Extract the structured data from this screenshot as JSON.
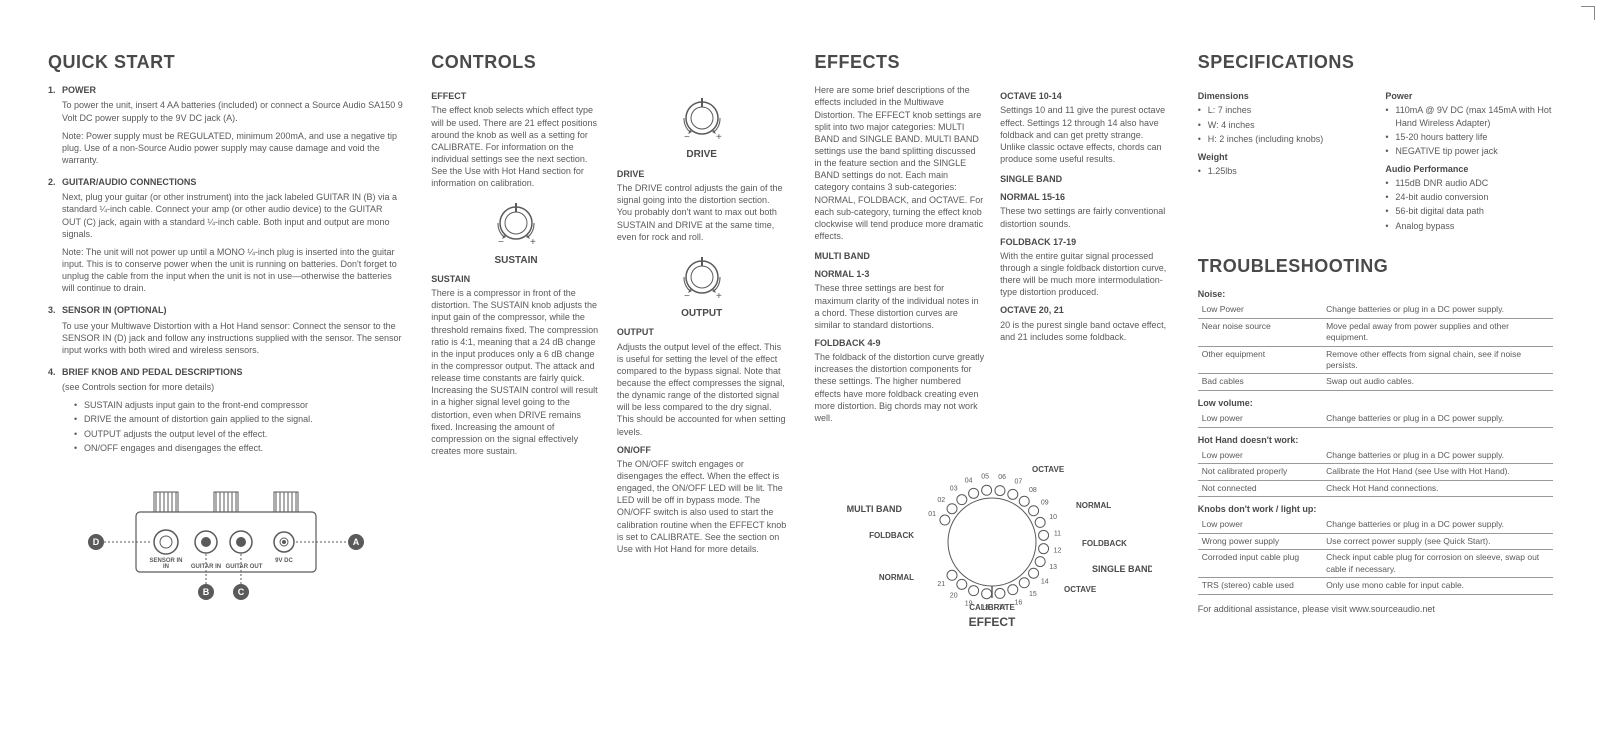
{
  "quickstart": {
    "title": "QUICK START",
    "items": [
      {
        "heading": "POWER",
        "body": "To power the unit, insert 4 AA batteries (included) or connect a Source Audio SA150 9 Volt DC power supply to the 9V DC jack (A).",
        "note": "Note: Power supply must be REGULATED, minimum 200mA, and use a negative tip plug. Use of a non-Source Audio power supply may cause damage and void the warranty."
      },
      {
        "heading": "GUITAR/AUDIO CONNECTIONS",
        "body": "Next, plug your guitar (or other instrument) into the jack labeled GUITAR IN (B) via a standard ¼-inch cable. Connect your amp (or other audio device) to the GUITAR OUT (C) jack, again with a standard ¼-inch cable. Both input and output are mono signals.",
        "note": "Note: The unit will not power up until a MONO ¼-inch plug is inserted into the guitar input. This is to conserve power when the unit is running on batteries. Don't forget to unplug the cable from the input when the unit is not in use—otherwise the batteries will continue to drain."
      },
      {
        "heading": "SENSOR IN (optional)",
        "body": "To use your Multiwave Distortion with a Hot Hand sensor: Connect the sensor to the SENSOR IN (D) jack and follow any instructions supplied with the sensor. The sensor input works with both wired and wireless sensors."
      },
      {
        "heading": "BRIEF KNOB AND PEDAL DESCRIPTIONS",
        "body": "(see Controls section for more details)",
        "bullets": [
          "SUSTAIN adjusts input gain to the front-end compressor",
          "DRIVE the amount of distortion gain applied to the signal.",
          "OUTPUT adjusts the output level of the effect.",
          "ON/OFF engages and disengages the effect."
        ]
      }
    ],
    "diagram_labels": {
      "sensor": "SENSOR IN",
      "gin": "GUITAR IN",
      "gout": "GUITAR OUT",
      "dc": "9V DC",
      "a": "A",
      "b": "B",
      "c": "C",
      "d": "D"
    }
  },
  "controls": {
    "title": "CONTROLS",
    "effect": {
      "h": "EFFECT",
      "body": "The effect knob selects which effect type will be used. There are 21 effect positions around the knob as well as a setting for CALIBRATE. For information on the individual settings see the next section. See the Use with Hot Hand section for information on calibration."
    },
    "sustain": {
      "h": "SUSTAIN",
      "body": "There is a compressor in front of the distortion. The SUSTAIN knob adjusts the input gain of the compressor, while the threshold remains fixed. The compression ratio is 4:1, meaning that a 24 dB change in the input produces only a 6 dB change in the compressor output. The attack and release time constants are fairly quick. Increasing the SUSTAIN control will result in a higher signal level going to the distortion, even when DRIVE remains fixed. Increasing the amount of compression on the signal effectively creates more sustain."
    },
    "drive": {
      "h": "DRIVE",
      "body": "The DRIVE control adjusts the gain of the signal going into the distortion section. You probably don't want to max out both SUSTAIN and DRIVE at the same time, even for rock and roll."
    },
    "output": {
      "h": "OUTPUT",
      "body": "Adjusts the output level of the effect. This is useful for setting the level of the effect compared to the bypass signal. Note that because the effect compresses the signal, the dynamic range of the distorted signal will be less compared to the dry signal. This should be accounted for when setting levels."
    },
    "onoff": {
      "h": "ON/OFF",
      "body": "The ON/OFF switch engages or disengages the effect. When the effect is engaged, the ON/OFF LED will be lit. The LED will be off in bypass mode. The ON/OFF switch is also used to start the calibration routine when the EFFECT knob is set to CALIBRATE. See the section on Use with Hot Hand for more details."
    },
    "knob_labels": {
      "sustain": "SUSTAIN",
      "drive": "DRIVE",
      "output": "OUTPUT"
    }
  },
  "effects": {
    "title": "EFFECTS",
    "intro": "Here are some brief descriptions of the effects included in the Multiwave Distortion. The EFFECT knob settings are split into two major categories: MULTI BAND and SINGLE BAND. MULTI BAND settings use the band splitting discussed in the feature section and the SINGLE BAND settings do not. Each main category contains 3 sub-categories: NORMAL, FOLDBACK, and OCTAVE. For each sub-category, turning the effect knob clockwise will tend produce more dramatic effects.",
    "multiband": {
      "h": "MULTI BAND",
      "sections": [
        {
          "h": "NORMAL 1-3",
          "body": "These three settings are best for maximum clarity of the individual notes in a chord. These distortion curves are similar to standard distortions."
        },
        {
          "h": "FOLDBACK 4-9",
          "body": "The foldback of the distortion curve greatly increases the distortion components for these settings. The higher numbered effects have more foldback creating even more distortion. Big chords may not work well."
        },
        {
          "h": "OCTAVE 10-14",
          "body": "Settings 10 and 11 give the purest octave effect. Settings 12 through 14 also have foldback and can get pretty strange. Unlike classic octave effects, chords can produce some useful results."
        }
      ]
    },
    "singleband": {
      "h": "SINGLE BAND",
      "sections": [
        {
          "h": "NORMAL 15-16",
          "body": "These two settings are fairly conventional distortion sounds."
        },
        {
          "h": "FOLDBACK 17-19",
          "body": "With the entire guitar signal processed through a single foldback distortion curve, there will be much more intermodulation-type distortion produced."
        },
        {
          "h": "OCTAVE 20, 21",
          "body": "20 is the purest single band octave effect, and 21 includes some foldback."
        }
      ]
    },
    "dial": {
      "center": "EFFECT",
      "calibrate": "CALIBRATE",
      "mb": "MULTI BAND",
      "sb": "SINGLE BAND",
      "octave": "OCTAVE",
      "foldback": "FOLDBACK",
      "normal": "NORMAL",
      "ticks": [
        "01",
        "02",
        "03",
        "04",
        "05",
        "06",
        "07",
        "08",
        "09",
        "10",
        "11",
        "12",
        "13",
        "14",
        "15",
        "16",
        "17",
        "18",
        "19",
        "20",
        "21"
      ]
    }
  },
  "specs": {
    "title": "SPECIFICATIONS",
    "dimensions": {
      "h": "Dimensions",
      "items": [
        "L: 7 inches",
        "W: 4 inches",
        "H: 2 inches (including knobs)"
      ]
    },
    "weight": {
      "h": "Weight",
      "items": [
        "1.25lbs"
      ]
    },
    "power": {
      "h": "Power",
      "items": [
        "110mA @ 9V DC (max 145mA with Hot Hand Wireless Adapter)",
        "15-20 hours battery life",
        "NEGATIVE tip power jack"
      ]
    },
    "audio": {
      "h": "Audio Performance",
      "items": [
        "115dB DNR audio ADC",
        "24-bit audio conversion",
        "56-bit digital data path",
        "Analog bypass"
      ]
    }
  },
  "trouble": {
    "title": "TROUBLESHOOTING",
    "noise": {
      "h": "Noise:",
      "rows": [
        [
          "Low Power",
          "Change batteries or plug in a DC power supply."
        ],
        [
          "Near noise source",
          "Move pedal away from power supplies and other equipment."
        ],
        [
          "Other equipment",
          "Remove other effects from signal chain, see if noise persists."
        ],
        [
          "Bad cables",
          "Swap out audio cables."
        ]
      ]
    },
    "lowvol": {
      "h": "Low volume:",
      "rows": [
        [
          "Low power",
          "Change batteries or plug in a DC power supply."
        ]
      ]
    },
    "hothand": {
      "h": "Hot Hand doesn't work:",
      "rows": [
        [
          "Low power",
          "Change batteries or plug in a DC power supply."
        ],
        [
          "Not calibrated properly",
          "Calibrate the Hot Hand (see Use with Hot Hand)."
        ],
        [
          "Not connected",
          "Check Hot Hand connections."
        ]
      ]
    },
    "knobs": {
      "h": "Knobs don't work / light up:",
      "rows": [
        [
          "Low power",
          "Change batteries or plug in a DC power supply."
        ],
        [
          "Wrong power supply",
          "Use correct power supply (see Quick Start)."
        ],
        [
          "Corroded input cable plug",
          "Check input cable plug for corrosion on sleeve, swap out cable if necessary."
        ],
        [
          "TRS (stereo) cable used",
          "Only use mono cable for input cable."
        ]
      ]
    },
    "footer": "For additional assistance, please visit www.sourceaudio.net"
  },
  "colors": {
    "text": "#5a5a5a",
    "heading": "#4a4a4a",
    "line": "#999999",
    "bg": "#ffffff"
  }
}
